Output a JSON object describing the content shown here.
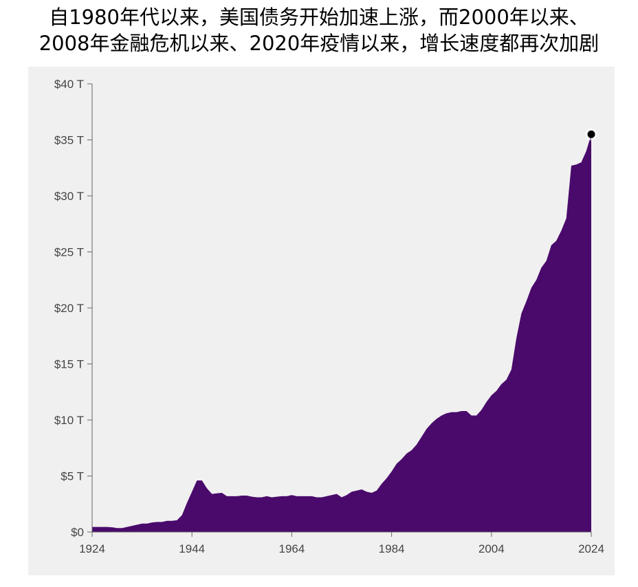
{
  "title_lines": [
    "自1980年代以来，美国债务开始加速上涨，而2000年以来、",
    "2008年金融危机以来、2020年疫情以来，增长速度都再次加剧"
  ],
  "colors": {
    "area": "#4a0a6b",
    "plot_bg": "#f0f0f0",
    "axis": "#666666",
    "marker": "#000000"
  },
  "chart_data": {
    "type": "area",
    "title": "自1980年代以来，美国债务开始加速上涨，而2000年以来、2008年金融危机以来、2020年疫情以来，增长速度都再次加剧",
    "xlabel": "",
    "ylabel": "",
    "xlim": [
      1924,
      2024
    ],
    "ylim": [
      0,
      40
    ],
    "x_ticks": [
      1924,
      1944,
      1964,
      1984,
      2004,
      2024
    ],
    "x_tick_labels": [
      "1924",
      "1944",
      "1964",
      "1984",
      "2004",
      "2024"
    ],
    "y_ticks": [
      0,
      5,
      10,
      15,
      20,
      25,
      30,
      35,
      40
    ],
    "y_tick_labels": [
      "$0",
      "$5 T",
      "$10 T",
      "$15 T",
      "$20 T",
      "$25 T",
      "$30 T",
      "$35 T",
      "$40 T"
    ],
    "unit": "trillion USD",
    "grid": false,
    "highlight_point": {
      "x": 2024,
      "y": 35.5
    },
    "x": [
      1924,
      1925,
      1926,
      1927,
      1928,
      1929,
      1930,
      1931,
      1932,
      1933,
      1934,
      1935,
      1936,
      1937,
      1938,
      1939,
      1940,
      1941,
      1942,
      1943,
      1944,
      1945,
      1946,
      1947,
      1948,
      1949,
      1950,
      1951,
      1952,
      1953,
      1954,
      1955,
      1956,
      1957,
      1958,
      1959,
      1960,
      1961,
      1962,
      1963,
      1964,
      1965,
      1966,
      1967,
      1968,
      1969,
      1970,
      1971,
      1972,
      1973,
      1974,
      1975,
      1976,
      1977,
      1978,
      1979,
      1980,
      1981,
      1982,
      1983,
      1984,
      1985,
      1986,
      1987,
      1988,
      1989,
      1990,
      1991,
      1992,
      1993,
      1994,
      1995,
      1996,
      1997,
      1998,
      1999,
      2000,
      2001,
      2002,
      2003,
      2004,
      2005,
      2006,
      2007,
      2008,
      2009,
      2010,
      2011,
      2012,
      2013,
      2014,
      2015,
      2016,
      2017,
      2018,
      2019,
      2020,
      2021,
      2022,
      2023,
      2024
    ],
    "values": [
      0.45,
      0.45,
      0.45,
      0.45,
      0.42,
      0.35,
      0.35,
      0.45,
      0.55,
      0.65,
      0.75,
      0.75,
      0.85,
      0.9,
      0.9,
      1.0,
      1.0,
      1.05,
      1.5,
      2.6,
      3.6,
      4.6,
      4.6,
      3.9,
      3.4,
      3.45,
      3.5,
      3.2,
      3.2,
      3.2,
      3.25,
      3.25,
      3.15,
      3.1,
      3.1,
      3.2,
      3.1,
      3.15,
      3.2,
      3.2,
      3.3,
      3.2,
      3.2,
      3.2,
      3.2,
      3.1,
      3.1,
      3.2,
      3.3,
      3.4,
      3.1,
      3.3,
      3.6,
      3.7,
      3.8,
      3.6,
      3.5,
      3.7,
      4.3,
      4.8,
      5.4,
      6.1,
      6.5,
      7.0,
      7.3,
      7.8,
      8.5,
      9.2,
      9.7,
      10.1,
      10.4,
      10.6,
      10.7,
      10.7,
      10.8,
      10.8,
      10.4,
      10.4,
      10.9,
      11.6,
      12.2,
      12.6,
      13.2,
      13.6,
      14.5,
      17.3,
      19.5,
      20.6,
      21.8,
      22.5,
      23.6,
      24.2,
      25.6,
      26.0,
      26.9,
      28.0,
      32.7,
      32.8,
      33.0,
      34.0,
      35.5
    ]
  }
}
